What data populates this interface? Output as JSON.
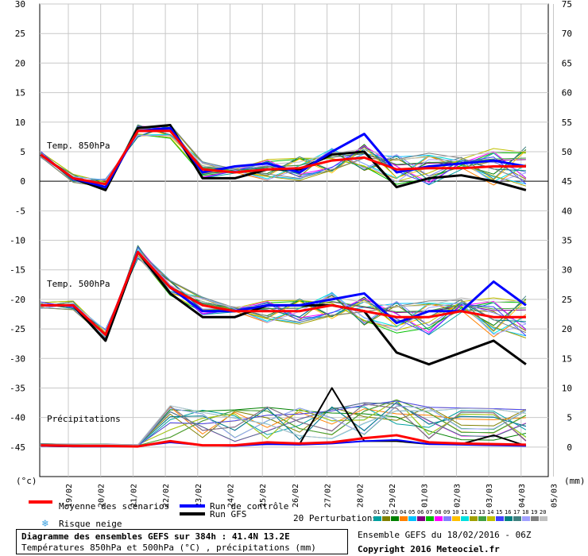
{
  "chart_data": {
    "type": "line",
    "x_dates": [
      "19/02",
      "20/02",
      "21/02",
      "22/02",
      "23/02",
      "24/02",
      "25/02",
      "26/02",
      "27/02",
      "28/02",
      "29/02",
      "01/03",
      "02/03",
      "03/03",
      "04/03",
      "05/03"
    ],
    "left_axis": {
      "unit": "(°c)",
      "ticks": [
        "30",
        "25",
        "20",
        "15",
        "10",
        "5",
        "0",
        "-5",
        "-10",
        "-15",
        "-20",
        "-25",
        "-30",
        "-35",
        "-40",
        "-45"
      ],
      "ylim": [
        -50,
        30
      ]
    },
    "right_axis": {
      "unit": "(mm)",
      "ticks": [
        "75",
        "70",
        "65",
        "60",
        "55",
        "50",
        "45",
        "40",
        "35",
        "30",
        "25",
        "20",
        "15",
        "10",
        "5",
        "0"
      ]
    },
    "panel_labels": {
      "t850": "Temp. 850hPa",
      "t500": "Temp. 500hPa",
      "precip": "Précipitations"
    },
    "series": [
      {
        "name": "Moyenne des scénarios",
        "color": "#ff0000",
        "key": "mean"
      },
      {
        "name": "Run de contrôle",
        "color": "#0000ff",
        "key": "control"
      },
      {
        "name": "Run GFS",
        "color": "#000000",
        "key": "gfs"
      }
    ],
    "t850": {
      "mean": [
        4.5,
        0.5,
        -0.5,
        8.5,
        8.5,
        2.0,
        1.5,
        2.0,
        2.2,
        3.5,
        4.0,
        2.0,
        2.2,
        2.2,
        2.5,
        2.5
      ],
      "control": [
        4.5,
        0.5,
        -1.0,
        8.5,
        9.0,
        1.5,
        2.5,
        3.0,
        1.5,
        5.0,
        8.0,
        1.5,
        2.5,
        3.0,
        3.5,
        2.5
      ],
      "gfs": [
        4.5,
        0.5,
        -1.5,
        9.0,
        9.5,
        0.5,
        0.5,
        2.0,
        2.0,
        4.5,
        5.0,
        -1.0,
        0.5,
        1.0,
        0.0,
        -1.5
      ]
    },
    "t500": {
      "mean": [
        -21,
        -21,
        -26,
        -12,
        -18,
        -21,
        -22,
        -22,
        -22,
        -21,
        -22,
        -23,
        -23,
        -22,
        -23,
        -23
      ],
      "control": [
        -21,
        -21,
        -26,
        -12,
        -18,
        -22,
        -22,
        -21,
        -21,
        -20,
        -19,
        -24,
        -22,
        -22,
        -17,
        -21
      ],
      "gfs": [
        -21,
        -21,
        -27,
        -12,
        -19,
        -23,
        -23,
        -21,
        -21,
        -21,
        -22,
        -29,
        -31,
        -29,
        -27,
        -31
      ]
    },
    "precip_mm": {
      "mean": [
        0.3,
        0.2,
        0.2,
        0.1,
        1.0,
        0.3,
        0.3,
        0.8,
        0.6,
        0.8,
        1.5,
        2.0,
        0.8,
        0.6,
        0.5,
        0.4
      ],
      "control": [
        0.2,
        0.1,
        0.1,
        0.1,
        0.8,
        0.3,
        0.2,
        0.5,
        0.4,
        0.6,
        1.0,
        1.2,
        0.5,
        0.4,
        0.3,
        0.2
      ],
      "gfs": [
        0.2,
        0.1,
        0.1,
        0.1,
        1.0,
        0.3,
        0.3,
        0.5,
        0.5,
        10.0,
        1.0,
        1.0,
        0.5,
        0.5,
        2.0,
        0.2
      ]
    },
    "perturbations": {
      "label": "20 Perturbations",
      "ids": [
        "01",
        "02",
        "03",
        "04",
        "05",
        "06",
        "07",
        "08",
        "09",
        "10",
        "11",
        "12",
        "13",
        "14",
        "15",
        "16",
        "17",
        "18",
        "19",
        "20"
      ],
      "colors": [
        "#00a0a0",
        "#808000",
        "#008000",
        "#ff8000",
        "#00c0ff",
        "#800080",
        "#00c000",
        "#ff00ff",
        "#8080ff",
        "#ffc000",
        "#00e0e0",
        "#a0a000",
        "#40a040",
        "#c0c000",
        "#4040ff",
        "#008080",
        "#408080",
        "#a0a0ff",
        "#808080",
        "#c0c0c0"
      ]
    },
    "grid": true
  },
  "legend": {
    "mean": "Moyenne des scénarios",
    "control": "Run de contrôle",
    "gfs": "Run GFS",
    "snow": "Risque neige",
    "perturbations": "20 Perturbations",
    "snow_icon": "snowflake-icon"
  },
  "footer": {
    "title": "Diagramme des ensembles GEFS sur 384h : 41.4N 13.2E",
    "subtitle": "Températures 850hPa et 500hPa (°C) , précipitations (mm)",
    "ensemble": "Ensemble GEFS du 18/02/2016 - 06Z",
    "copyright": "Copyright 2016 Meteociel.fr"
  }
}
